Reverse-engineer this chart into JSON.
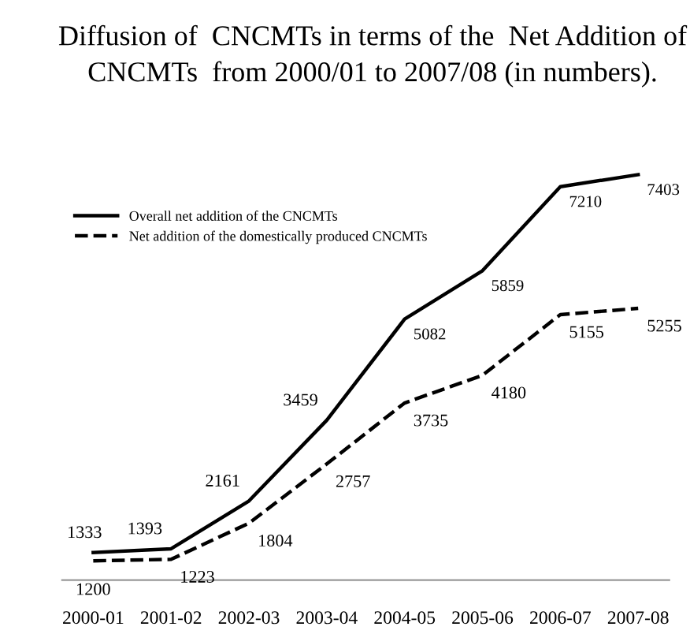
{
  "chart_data": {
    "type": "line",
    "title": "Diffusion of  CNCMTs in terms of the  Net Addition of\nCNCMTs  from 2000/01 to 2007/08 (in numbers).",
    "categories": [
      "2000-01",
      "2001-02",
      "2002-03",
      "2003-04",
      "2004-05",
      "2005-06",
      "2006-07",
      "2007-08"
    ],
    "series": [
      {
        "name": "Overall net addition of the CNCMTs",
        "color": "#000000",
        "line_style": "solid",
        "values": [
          1333,
          1393,
          2161,
          3459,
          5082,
          5859,
          7210,
          7403
        ]
      },
      {
        "name": "Net addition of the domestically produced CNCMTs",
        "color": "#000000",
        "line_style": "dashed",
        "values": [
          1200,
          1223,
          1804,
          2757,
          3735,
          4180,
          5155,
          5255
        ]
      }
    ],
    "data_labels": true,
    "legend": "top left",
    "grid": false,
    "marker": "none",
    "tick_labels": "x"
  }
}
